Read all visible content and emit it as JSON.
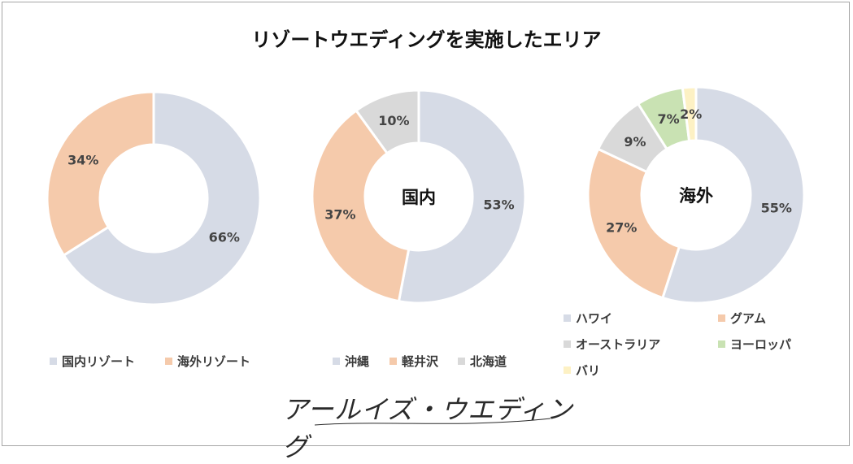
{
  "title": "リゾートウエディングを実施したエリア",
  "colors": {
    "blue": "#d6dbe6",
    "orange": "#f5caab",
    "gray": "#d9d9d9",
    "green": "#c9e2b3",
    "yellow": "#fdf1c4",
    "label": "#444444"
  },
  "chart_data": [
    {
      "type": "pie",
      "center_label": "",
      "categories": [
        "国内リゾート",
        "海外リゾート"
      ],
      "values": [
        66,
        34
      ],
      "labels": [
        "66%",
        "34%"
      ],
      "colors": [
        "#d6dbe6",
        "#f5caab"
      ]
    },
    {
      "type": "pie",
      "center_label": "国内",
      "categories": [
        "沖縄",
        "軽井沢",
        "北海道"
      ],
      "values": [
        53,
        37,
        10
      ],
      "labels": [
        "53%",
        "37%",
        "10%"
      ],
      "colors": [
        "#d6dbe6",
        "#f5caab",
        "#d9d9d9"
      ]
    },
    {
      "type": "pie",
      "center_label": "海外",
      "categories": [
        "ハワイ",
        "グアム",
        "オーストラリア",
        "ヨーロッパ",
        "バリ"
      ],
      "values": [
        55,
        27,
        9,
        7,
        2
      ],
      "labels": [
        "55%",
        "27%",
        "9%",
        "7%",
        "2%"
      ],
      "colors": [
        "#d6dbe6",
        "#f5caab",
        "#d9d9d9",
        "#c9e2b3",
        "#fdf1c4"
      ]
    }
  ],
  "brand": "アールイズ・ウエディング"
}
